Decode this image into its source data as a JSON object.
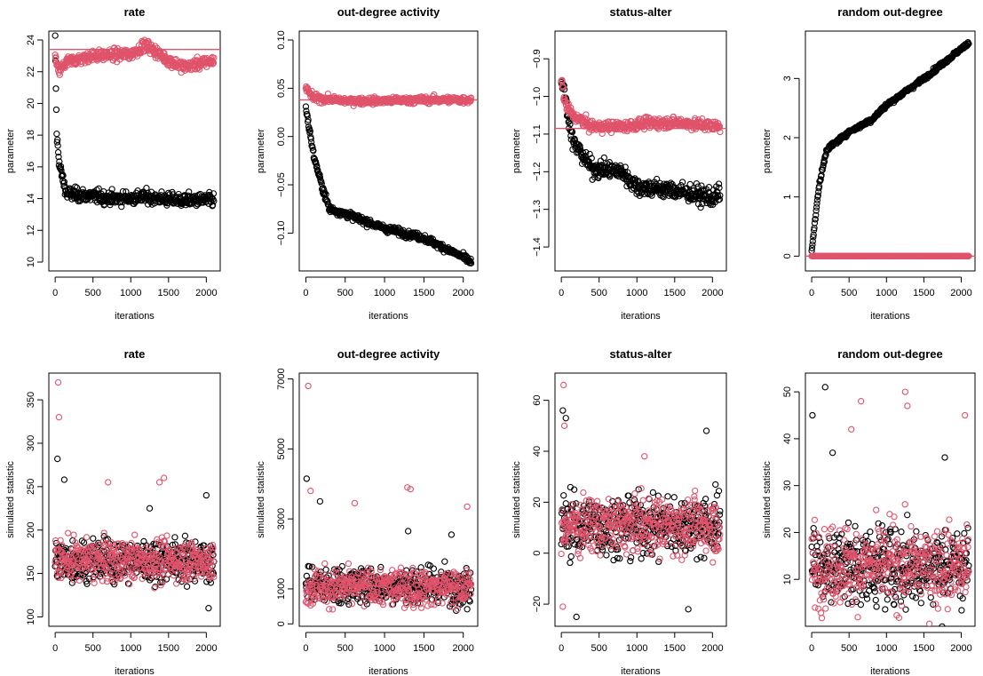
{
  "colors": {
    "series_black": "#000000",
    "series_red": "#df536b",
    "ref_line": "#df536b"
  },
  "chart_data": [
    {
      "type": "scatter",
      "title": "rate",
      "xlabel": "iterations",
      "ylabel": "parameter",
      "xlim": [
        0,
        2100
      ],
      "ylim": [
        10,
        24
      ],
      "xticks": [
        0,
        500,
        1000,
        1500,
        2000
      ],
      "yticks": [
        10,
        12,
        14,
        16,
        18,
        20,
        22,
        24
      ],
      "hline": 23.4,
      "series": [
        {
          "color": "#000000",
          "trajectory": [
            [
              0,
              24
            ],
            [
              20,
              18
            ],
            [
              60,
              16
            ],
            [
              150,
              14.3
            ],
            [
              400,
              14.2
            ],
            [
              800,
              14
            ],
            [
              1200,
              14.1
            ],
            [
              1600,
              13.9
            ],
            [
              2100,
              13.9
            ]
          ],
          "noise": 0.35
        },
        {
          "color": "#df536b",
          "trajectory": [
            [
              0,
              23
            ],
            [
              40,
              22
            ],
            [
              150,
              22.6
            ],
            [
              500,
              23
            ],
            [
              1000,
              23.1
            ],
            [
              1200,
              23.7
            ],
            [
              1500,
              22.7
            ],
            [
              1700,
              22.3
            ],
            [
              2100,
              22.7
            ]
          ],
          "noise": 0.3
        }
      ]
    },
    {
      "type": "scatter",
      "title": "out-degree activity",
      "xlabel": "iterations",
      "ylabel": "parameter",
      "xlim": [
        0,
        2100
      ],
      "ylim": [
        -0.13,
        0.1
      ],
      "xticks": [
        0,
        500,
        1000,
        1500,
        2000
      ],
      "yticks": [
        -0.1,
        -0.05,
        0.0,
        0.05,
        0.1
      ],
      "yticklabels": [
        "−0.10",
        "−0.05",
        "0.00",
        "0.05",
        "0.10"
      ],
      "hline": 0.038,
      "series": [
        {
          "color": "#000000",
          "trajectory": [
            [
              0,
              0.03
            ],
            [
              100,
              -0.02
            ],
            [
              200,
              -0.05
            ],
            [
              300,
              -0.075
            ],
            [
              500,
              -0.08
            ],
            [
              1000,
              -0.095
            ],
            [
              1500,
              -0.105
            ],
            [
              2000,
              -0.125
            ],
            [
              2100,
              -0.13
            ]
          ],
          "noise": 0.003
        },
        {
          "color": "#df536b",
          "trajectory": [
            [
              0,
              0.05
            ],
            [
              100,
              0.04
            ],
            [
              500,
              0.037
            ],
            [
              1000,
              0.037
            ],
            [
              1500,
              0.038
            ],
            [
              2100,
              0.038
            ]
          ],
          "noise": 0.003
        }
      ]
    },
    {
      "type": "scatter",
      "title": "status-alter",
      "xlabel": "iterations",
      "ylabel": "parameter",
      "xlim": [
        0,
        2100
      ],
      "ylim": [
        -1.44,
        -0.85
      ],
      "xticks": [
        0,
        500,
        1000,
        1500,
        2000
      ],
      "yticks": [
        -1.4,
        -1.3,
        -1.2,
        -1.1,
        -1.0,
        -0.9
      ],
      "yticklabels": [
        "−1.4",
        "−1.3",
        "−1.2",
        "−1.1",
        "−1.0",
        "−0.9"
      ],
      "hline": -1.085,
      "series": [
        {
          "color": "#000000",
          "trajectory": [
            [
              0,
              -0.95
            ],
            [
              50,
              -1.0
            ],
            [
              150,
              -1.12
            ],
            [
              400,
              -1.19
            ],
            [
              800,
              -1.2
            ],
            [
              1000,
              -1.24
            ],
            [
              1500,
              -1.25
            ],
            [
              2000,
              -1.27
            ],
            [
              2100,
              -1.26
            ]
          ],
          "noise": 0.02
        },
        {
          "color": "#df536b",
          "trajectory": [
            [
              0,
              -0.95
            ],
            [
              50,
              -1.02
            ],
            [
              150,
              -1.05
            ],
            [
              400,
              -1.08
            ],
            [
              800,
              -1.08
            ],
            [
              1200,
              -1.07
            ],
            [
              1600,
              -1.07
            ],
            [
              2100,
              -1.08
            ]
          ],
          "noise": 0.012
        }
      ]
    },
    {
      "type": "scatter",
      "title": "random out-degree",
      "xlabel": "iterations",
      "ylabel": "parameter",
      "xlim": [
        0,
        2100
      ],
      "ylim": [
        -0.1,
        3.65
      ],
      "xticks": [
        0,
        500,
        1000,
        1500,
        2000
      ],
      "yticks": [
        0,
        1,
        2,
        3
      ],
      "hline": 0,
      "series": [
        {
          "color": "#000000",
          "trajectory": [
            [
              0,
              0.1
            ],
            [
              100,
              1.2
            ],
            [
              200,
              1.8
            ],
            [
              500,
              2.1
            ],
            [
              800,
              2.3
            ],
            [
              1000,
              2.55
            ],
            [
              1500,
              3.0
            ],
            [
              1800,
              3.3
            ],
            [
              2100,
              3.6
            ]
          ],
          "noise": 0.03
        },
        {
          "color": "#df536b",
          "trajectory": [
            [
              0,
              0
            ],
            [
              2100,
              0
            ]
          ],
          "noise": 0
        }
      ]
    },
    {
      "type": "scatter",
      "title": "rate",
      "xlabel": "iterations",
      "ylabel": "simulated statistic",
      "xlim": [
        0,
        2100
      ],
      "ylim": [
        100,
        370
      ],
      "xticks": [
        0,
        500,
        1000,
        1500,
        2000
      ],
      "yticks": [
        100,
        150,
        200,
        250,
        300,
        350
      ],
      "hline": null,
      "series": [
        {
          "color": "#000000",
          "center": 165,
          "spread": 20,
          "outliers": [
            [
              30,
              282
            ],
            [
              120,
              258
            ],
            [
              1250,
              225
            ],
            [
              2000,
              240
            ],
            [
              2030,
              110
            ]
          ]
        },
        {
          "color": "#df536b",
          "center": 165,
          "spread": 20,
          "outliers": [
            [
              40,
              370
            ],
            [
              50,
              330
            ],
            [
              700,
              255
            ],
            [
              1380,
              255
            ],
            [
              1440,
              260
            ]
          ]
        }
      ]
    },
    {
      "type": "scatter",
      "title": "out-degree activity",
      "xlabel": "iterations",
      "ylabel": "simulated statistic",
      "xlim": [
        0,
        2100
      ],
      "ylim": [
        200,
        6900
      ],
      "xticks": [
        0,
        500,
        1000,
        1500,
        2000
      ],
      "yticks": [
        0,
        1000,
        3000,
        5000,
        7000
      ],
      "hline": null,
      "series": [
        {
          "color": "#000000",
          "center": 1100,
          "spread": 450,
          "outliers": [
            [
              10,
              4150
            ],
            [
              180,
              3500
            ],
            [
              1300,
              2650
            ],
            [
              1850,
              2550
            ],
            [
              2050,
              420
            ]
          ]
        },
        {
          "color": "#df536b",
          "center": 1050,
          "spread": 450,
          "outliers": [
            [
              30,
              6800
            ],
            [
              60,
              3800
            ],
            [
              620,
              3450
            ],
            [
              1290,
              3900
            ],
            [
              1330,
              3850
            ],
            [
              2050,
              3350
            ]
          ]
        }
      ]
    },
    {
      "type": "scatter",
      "title": "status-alter",
      "xlabel": "iterations",
      "ylabel": "simulated statistic",
      "xlim": [
        0,
        2100
      ],
      "ylim": [
        -25,
        67
      ],
      "xticks": [
        0,
        500,
        1000,
        1500,
        2000
      ],
      "yticks": [
        -20,
        0,
        20,
        40,
        60
      ],
      "yticklabels": [
        "−20",
        "0",
        "20",
        "40",
        "60"
      ],
      "hline": null,
      "series": [
        {
          "color": "#000000",
          "center": 11,
          "spread": 10,
          "outliers": [
            [
              20,
              56
            ],
            [
              60,
              53
            ],
            [
              200,
              -25
            ],
            [
              1920,
              48
            ],
            [
              1680,
              -22
            ]
          ]
        },
        {
          "color": "#df536b",
          "center": 11,
          "spread": 9,
          "outliers": [
            [
              30,
              66
            ],
            [
              40,
              50
            ],
            [
              20,
              -21
            ],
            [
              1100,
              38
            ]
          ]
        }
      ]
    },
    {
      "type": "scatter",
      "title": "random out-degree",
      "xlabel": "iterations",
      "ylabel": "simulated statistic",
      "xlim": [
        0,
        2100
      ],
      "ylim": [
        2,
        52
      ],
      "xticks": [
        0,
        500,
        1000,
        1500,
        2000
      ],
      "yticks": [
        10,
        20,
        30,
        40,
        50
      ],
      "hline": null,
      "series": [
        {
          "color": "#000000",
          "center": 13,
          "spread": 7,
          "outliers": [
            [
              10,
              45
            ],
            [
              180,
              51
            ],
            [
              280,
              37
            ],
            [
              1780,
              36
            ]
          ]
        },
        {
          "color": "#df536b",
          "center": 13,
          "spread": 7,
          "outliers": [
            [
              530,
              42
            ],
            [
              660,
              48
            ],
            [
              1250,
              50
            ],
            [
              1280,
              47
            ],
            [
              2050,
              45
            ]
          ]
        }
      ]
    }
  ]
}
